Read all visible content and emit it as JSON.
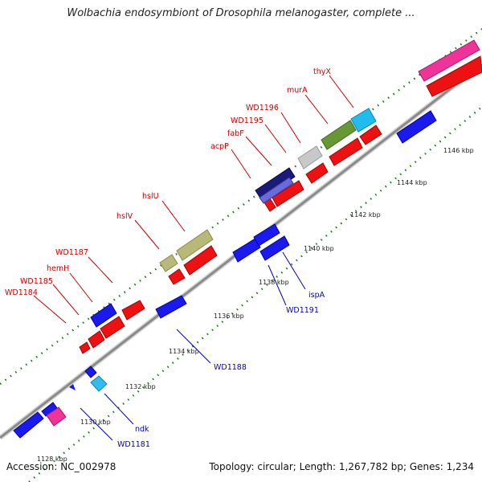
{
  "header": {
    "title": "Wolbachia endosymbiont of Drosophila melanogaster, complete ..."
  },
  "footer": {
    "accession": "Accession: NC_002978",
    "stats": "Topology: circular; Length: 1,267,782 bp; Genes: 1,234"
  },
  "colors": {
    "label_top": "#cc0000",
    "label_bottom": "#0000cc",
    "backbone": "#8a8a8a",
    "dots": "#1a7a1a"
  },
  "ticks": [
    "1128 kbp",
    "1130 kbp",
    "1132 kbp",
    "1134 kbp",
    "1136 kbp",
    "1138 kbp",
    "1140 kbp",
    "1142 kbp",
    "1144 kbp",
    "1146 kbp"
  ],
  "labels_top": [
    "WD1184",
    "WD1185",
    "hemH",
    "WD1187",
    "hslV",
    "hslU",
    "acpP",
    "fabF",
    "WD1195",
    "WD1196",
    "murA",
    "thyX"
  ],
  "labels_bottom": [
    "WD1181",
    "ndk",
    "WD1188",
    "WD1191",
    "ispA"
  ]
}
